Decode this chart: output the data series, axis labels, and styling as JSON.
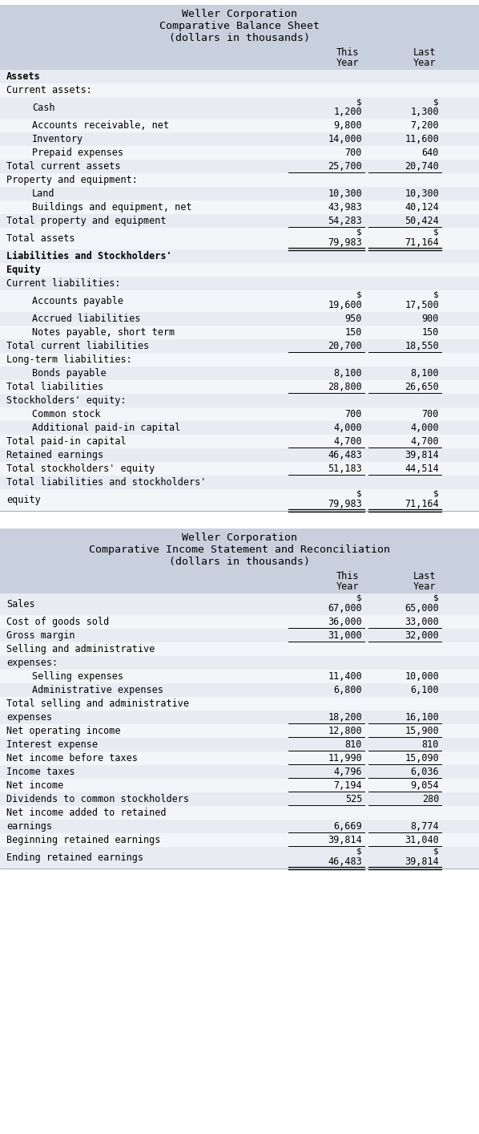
{
  "header_bg": "#c8d0de",
  "row_bg_light": "#e8ecf2",
  "row_bg_white": "#f4f5f8",
  "font_family": "monospace",
  "table1_title": [
    "Weller Corporation",
    "Comparative Balance Sheet",
    "(dollars in thousands)"
  ],
  "table1_col_headers": [
    [
      "This",
      "Year"
    ],
    [
      "Last",
      "Year"
    ]
  ],
  "table1_rows": [
    {
      "label": "Assets",
      "v1": "",
      "v2": "",
      "indent": 0,
      "bold": true,
      "underline": false,
      "dollar_above": false,
      "double_underline": false,
      "extra_top": false
    },
    {
      "label": "Current assets:",
      "v1": "",
      "v2": "",
      "indent": 0,
      "bold": false,
      "underline": false,
      "dollar_above": false,
      "double_underline": false,
      "extra_top": false
    },
    {
      "label": "Cash",
      "v1": "1,200",
      "v2": "1,300",
      "indent": 2,
      "bold": false,
      "underline": false,
      "dollar_above": true,
      "double_underline": false,
      "extra_top": true
    },
    {
      "label": "Accounts receivable, net",
      "v1": "9,800",
      "v2": "7,200",
      "indent": 2,
      "bold": false,
      "underline": false,
      "dollar_above": false,
      "double_underline": false,
      "extra_top": false
    },
    {
      "label": "Inventory",
      "v1": "14,000",
      "v2": "11,600",
      "indent": 2,
      "bold": false,
      "underline": false,
      "dollar_above": false,
      "double_underline": false,
      "extra_top": false
    },
    {
      "label": "Prepaid expenses",
      "v1": "700",
      "v2": "640",
      "indent": 2,
      "bold": false,
      "underline": false,
      "dollar_above": false,
      "double_underline": false,
      "extra_top": false
    },
    {
      "label": "Total current assets",
      "v1": "25,700",
      "v2": "20,740",
      "indent": 0,
      "bold": false,
      "underline": true,
      "dollar_above": false,
      "double_underline": false,
      "extra_top": false
    },
    {
      "label": "Property and equipment:",
      "v1": "",
      "v2": "",
      "indent": 0,
      "bold": false,
      "underline": false,
      "dollar_above": false,
      "double_underline": false,
      "extra_top": false
    },
    {
      "label": "Land",
      "v1": "10,300",
      "v2": "10,300",
      "indent": 2,
      "bold": false,
      "underline": false,
      "dollar_above": false,
      "double_underline": false,
      "extra_top": false
    },
    {
      "label": "Buildings and equipment, net",
      "v1": "43,983",
      "v2": "40,124",
      "indent": 2,
      "bold": false,
      "underline": false,
      "dollar_above": false,
      "double_underline": false,
      "extra_top": false
    },
    {
      "label": "Total property and equipment",
      "v1": "54,283",
      "v2": "50,424",
      "indent": 0,
      "bold": false,
      "underline": true,
      "dollar_above": false,
      "double_underline": false,
      "extra_top": false
    },
    {
      "label": "Total assets",
      "v1": "79,983",
      "v2": "71,164",
      "indent": 0,
      "bold": false,
      "underline": false,
      "dollar_above": true,
      "double_underline": true,
      "extra_top": true
    },
    {
      "label": "Liabilities and Stockholders'",
      "v1": "",
      "v2": "",
      "indent": 0,
      "bold": true,
      "underline": false,
      "dollar_above": false,
      "double_underline": false,
      "extra_top": false
    },
    {
      "label": "Equity",
      "v1": "",
      "v2": "",
      "indent": 0,
      "bold": true,
      "underline": false,
      "dollar_above": false,
      "double_underline": false,
      "extra_top": false
    },
    {
      "label": "Current liabilities:",
      "v1": "",
      "v2": "",
      "indent": 0,
      "bold": false,
      "underline": false,
      "dollar_above": false,
      "double_underline": false,
      "extra_top": false
    },
    {
      "label": "Accounts payable",
      "v1": "19,600",
      "v2": "17,500",
      "indent": 2,
      "bold": false,
      "underline": false,
      "dollar_above": true,
      "double_underline": false,
      "extra_top": true
    },
    {
      "label": "Accrued liabilities",
      "v1": "950",
      "v2": "900",
      "indent": 2,
      "bold": false,
      "underline": false,
      "dollar_above": false,
      "double_underline": false,
      "extra_top": false
    },
    {
      "label": "Notes payable, short term",
      "v1": "150",
      "v2": "150",
      "indent": 2,
      "bold": false,
      "underline": false,
      "dollar_above": false,
      "double_underline": false,
      "extra_top": false
    },
    {
      "label": "Total current liabilities",
      "v1": "20,700",
      "v2": "18,550",
      "indent": 0,
      "bold": false,
      "underline": true,
      "dollar_above": false,
      "double_underline": false,
      "extra_top": false
    },
    {
      "label": "Long-term liabilities:",
      "v1": "",
      "v2": "",
      "indent": 0,
      "bold": false,
      "underline": false,
      "dollar_above": false,
      "double_underline": false,
      "extra_top": false
    },
    {
      "label": "Bonds payable",
      "v1": "8,100",
      "v2": "8,100",
      "indent": 2,
      "bold": false,
      "underline": false,
      "dollar_above": false,
      "double_underline": false,
      "extra_top": false
    },
    {
      "label": "Total liabilities",
      "v1": "28,800",
      "v2": "26,650",
      "indent": 0,
      "bold": false,
      "underline": true,
      "dollar_above": false,
      "double_underline": false,
      "extra_top": false
    },
    {
      "label": "Stockholders' equity:",
      "v1": "",
      "v2": "",
      "indent": 0,
      "bold": false,
      "underline": false,
      "dollar_above": false,
      "double_underline": false,
      "extra_top": false
    },
    {
      "label": "Common stock",
      "v1": "700",
      "v2": "700",
      "indent": 2,
      "bold": false,
      "underline": false,
      "dollar_above": false,
      "double_underline": false,
      "extra_top": false
    },
    {
      "label": "Additional paid-in capital",
      "v1": "4,000",
      "v2": "4,000",
      "indent": 2,
      "bold": false,
      "underline": false,
      "dollar_above": false,
      "double_underline": false,
      "extra_top": false
    },
    {
      "label": "Total paid-in capital",
      "v1": "4,700",
      "v2": "4,700",
      "indent": 0,
      "bold": false,
      "underline": true,
      "dollar_above": false,
      "double_underline": false,
      "extra_top": false
    },
    {
      "label": "Retained earnings",
      "v1": "46,483",
      "v2": "39,814",
      "indent": 0,
      "bold": false,
      "underline": false,
      "dollar_above": false,
      "double_underline": false,
      "extra_top": false
    },
    {
      "label": "Total stockholders' equity",
      "v1": "51,183",
      "v2": "44,514",
      "indent": 0,
      "bold": false,
      "underline": true,
      "dollar_above": false,
      "double_underline": false,
      "extra_top": false
    },
    {
      "label": "Total liabilities and stockholders'",
      "v1": "",
      "v2": "",
      "indent": 0,
      "bold": false,
      "underline": false,
      "dollar_above": false,
      "double_underline": false,
      "extra_top": false
    },
    {
      "label": "equity",
      "v1": "79,983",
      "v2": "71,164",
      "indent": 0,
      "bold": false,
      "underline": false,
      "dollar_above": true,
      "double_underline": true,
      "extra_top": true
    }
  ],
  "table2_title": [
    "Weller Corporation",
    "Comparative Income Statement and Reconciliation",
    "(dollars in thousands)"
  ],
  "table2_col_headers": [
    [
      "This",
      "Year"
    ],
    [
      "Last",
      "Year"
    ]
  ],
  "table2_rows": [
    {
      "label": "Sales",
      "v1": "67,000",
      "v2": "65,000",
      "indent": 0,
      "bold": false,
      "underline": false,
      "dollar_above": true,
      "double_underline": false,
      "extra_top": true
    },
    {
      "label": "Cost of goods sold",
      "v1": "36,000",
      "v2": "33,000",
      "indent": 0,
      "bold": false,
      "underline": true,
      "dollar_above": false,
      "double_underline": false,
      "extra_top": false
    },
    {
      "label": "Gross margin",
      "v1": "31,000",
      "v2": "32,000",
      "indent": 0,
      "bold": false,
      "underline": true,
      "dollar_above": false,
      "double_underline": false,
      "extra_top": false
    },
    {
      "label": "Selling and administrative",
      "v1": "",
      "v2": "",
      "indent": 0,
      "bold": false,
      "underline": false,
      "dollar_above": false,
      "double_underline": false,
      "extra_top": false
    },
    {
      "label": "expenses:",
      "v1": "",
      "v2": "",
      "indent": 0,
      "bold": false,
      "underline": false,
      "dollar_above": false,
      "double_underline": false,
      "extra_top": false
    },
    {
      "label": "Selling expenses",
      "v1": "11,400",
      "v2": "10,000",
      "indent": 2,
      "bold": false,
      "underline": false,
      "dollar_above": false,
      "double_underline": false,
      "extra_top": false
    },
    {
      "label": "Administrative expenses",
      "v1": "6,800",
      "v2": "6,100",
      "indent": 2,
      "bold": false,
      "underline": false,
      "dollar_above": false,
      "double_underline": false,
      "extra_top": false
    },
    {
      "label": "Total selling and administrative",
      "v1": "",
      "v2": "",
      "indent": 0,
      "bold": false,
      "underline": false,
      "dollar_above": false,
      "double_underline": false,
      "extra_top": false
    },
    {
      "label": "expenses",
      "v1": "18,200",
      "v2": "16,100",
      "indent": 0,
      "bold": false,
      "underline": true,
      "dollar_above": false,
      "double_underline": false,
      "extra_top": false
    },
    {
      "label": "Net operating income",
      "v1": "12,800",
      "v2": "15,900",
      "indent": 0,
      "bold": false,
      "underline": true,
      "dollar_above": false,
      "double_underline": false,
      "extra_top": false
    },
    {
      "label": "Interest expense",
      "v1": "810",
      "v2": "810",
      "indent": 0,
      "bold": false,
      "underline": true,
      "dollar_above": false,
      "double_underline": false,
      "extra_top": false
    },
    {
      "label": "Net income before taxes",
      "v1": "11,990",
      "v2": "15,090",
      "indent": 0,
      "bold": false,
      "underline": true,
      "dollar_above": false,
      "double_underline": false,
      "extra_top": false
    },
    {
      "label": "Income taxes",
      "v1": "4,796",
      "v2": "6,036",
      "indent": 0,
      "bold": false,
      "underline": true,
      "dollar_above": false,
      "double_underline": false,
      "extra_top": false
    },
    {
      "label": "Net income",
      "v1": "7,194",
      "v2": "9,054",
      "indent": 0,
      "bold": false,
      "underline": true,
      "dollar_above": false,
      "double_underline": false,
      "extra_top": false
    },
    {
      "label": "Dividends to common stockholders",
      "v1": "525",
      "v2": "280",
      "indent": 0,
      "bold": false,
      "underline": true,
      "dollar_above": false,
      "double_underline": false,
      "extra_top": false
    },
    {
      "label": "Net income added to retained",
      "v1": "",
      "v2": "",
      "indent": 0,
      "bold": false,
      "underline": false,
      "dollar_above": false,
      "double_underline": false,
      "extra_top": false
    },
    {
      "label": "earnings",
      "v1": "6,669",
      "v2": "8,774",
      "indent": 0,
      "bold": false,
      "underline": true,
      "dollar_above": false,
      "double_underline": false,
      "extra_top": false
    },
    {
      "label": "Beginning retained earnings",
      "v1": "39,814",
      "v2": "31,040",
      "indent": 0,
      "bold": false,
      "underline": true,
      "dollar_above": false,
      "double_underline": false,
      "extra_top": false
    },
    {
      "label": "Ending retained earnings",
      "v1": "46,483",
      "v2": "39,814",
      "indent": 0,
      "bold": false,
      "underline": false,
      "dollar_above": true,
      "double_underline": true,
      "extra_top": true
    }
  ]
}
